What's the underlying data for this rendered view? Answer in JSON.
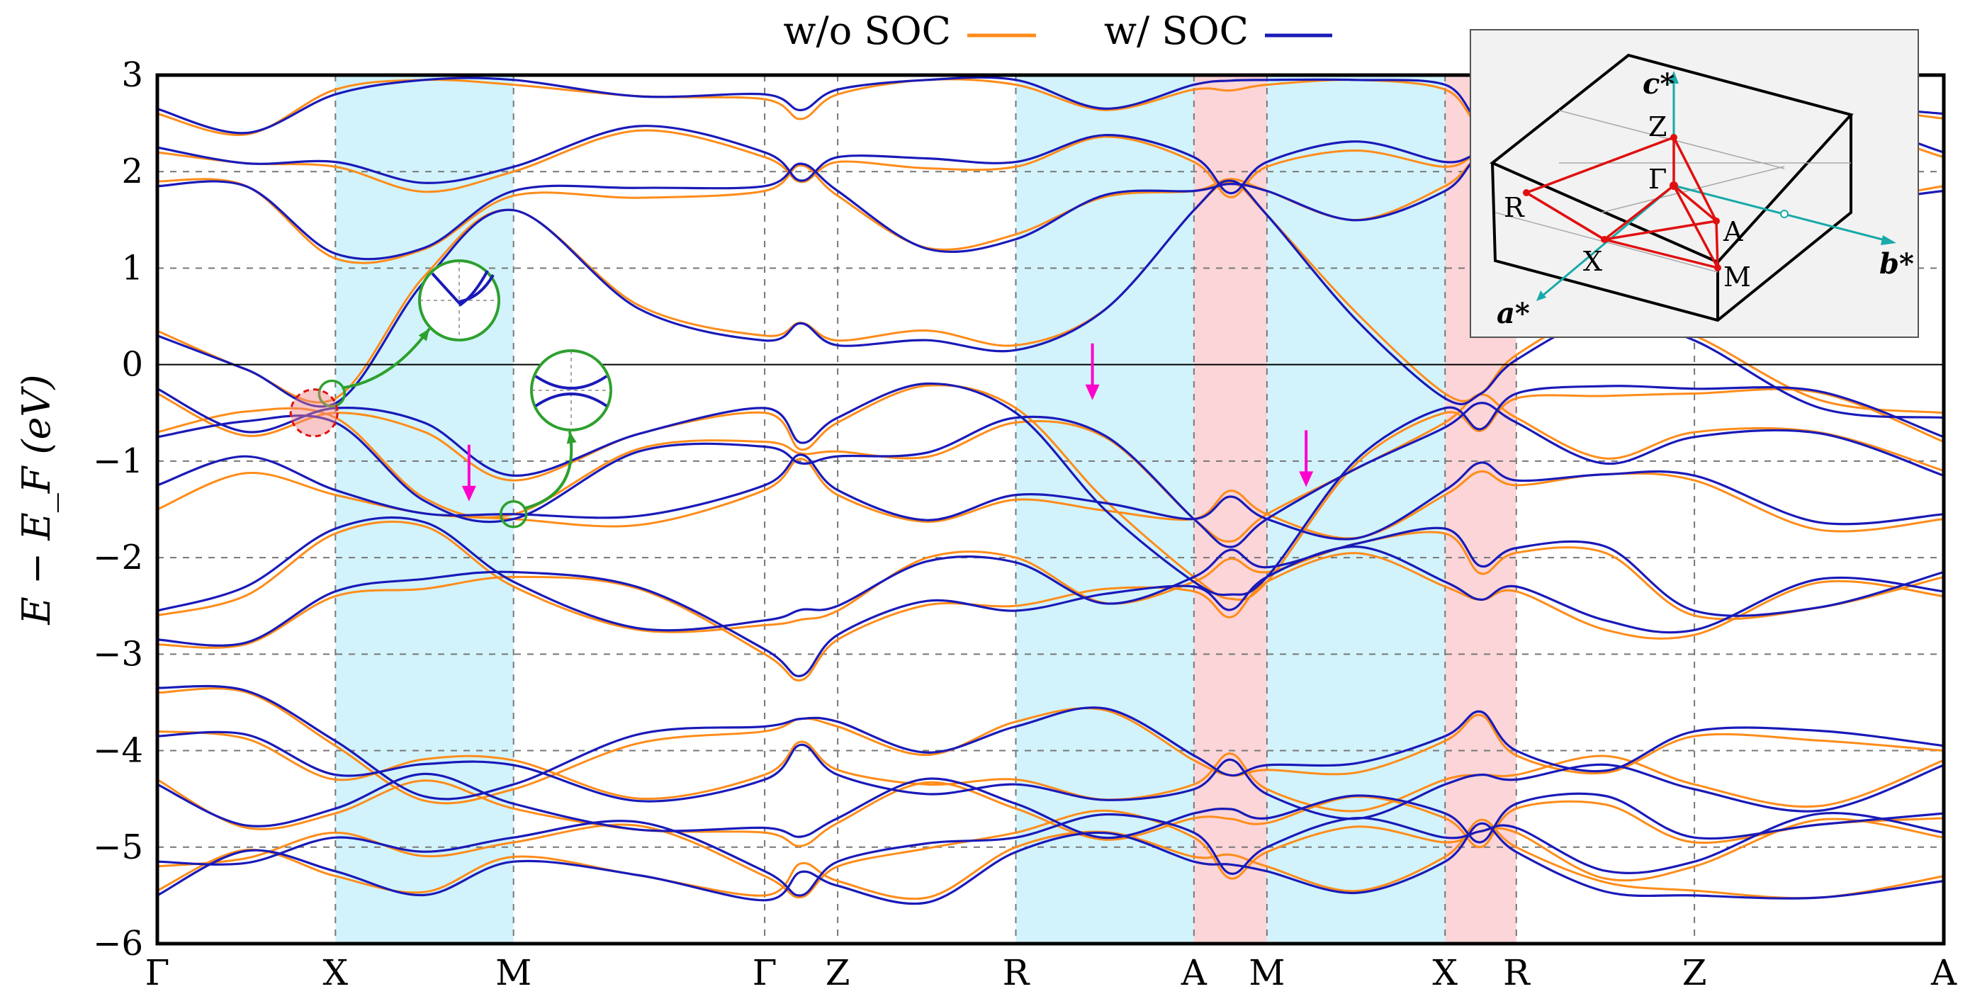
{
  "chart_data": {
    "type": "line",
    "title": "",
    "ylabel": "E − E_F (eV)",
    "xlabel": "",
    "ylim": [
      -6,
      3
    ],
    "yticks": [
      3,
      2,
      1,
      0,
      -1,
      -2,
      -3,
      -4,
      -5,
      -6
    ],
    "ytick_labels": [
      "3",
      "2",
      "1",
      "0",
      "−1",
      "−2",
      "−3",
      "−4",
      "−5",
      "−6"
    ],
    "k_path": [
      "Γ",
      "X",
      "M",
      "Γ",
      "Z",
      "R",
      "A",
      "M",
      "X",
      "R",
      "Z",
      "A"
    ],
    "k_positions": [
      0,
      1,
      2,
      3.41,
      3.82,
      4.82,
      5.82,
      6.23,
      7.23,
      7.63,
      8.63,
      10.03
    ],
    "highlight_regions": [
      {
        "from": 1,
        "to": 2,
        "color": "#d2f3fb"
      },
      {
        "from": 4.82,
        "to": 5.82,
        "color": "#d2f3fb"
      },
      {
        "from": 5.82,
        "to": 6.23,
        "color": "#fbd5d8"
      },
      {
        "from": 6.23,
        "to": 7.23,
        "color": "#d2f3fb"
      },
      {
        "from": 7.23,
        "to": 7.63,
        "color": "#fbd5d8"
      }
    ],
    "legend": [
      {
        "label": "w/o SOC",
        "color": "#ff8c1a"
      },
      {
        "label": "w/ SOC",
        "color": "#1a1ab8"
      }
    ],
    "fermi_level": 0,
    "series": [
      {
        "name": "w/o SOC",
        "color": "#ff8c1a",
        "bands": [
          [
            -5.45,
            -5.3,
            -5.1,
            -5.5,
            -5.35,
            -5.0,
            -5.1,
            -5.2,
            -5.1,
            -5.0,
            -5.45,
            -5.3
          ],
          [
            -5.2,
            -4.85,
            -4.95,
            -5.3,
            -5.2,
            -4.85,
            -4.9,
            -5.05,
            -4.95,
            -4.85,
            -5.2,
            -4.9
          ],
          [
            -4.3,
            -4.65,
            -4.6,
            -4.85,
            -4.75,
            -4.6,
            -4.7,
            -4.75,
            -4.7,
            -4.6,
            -4.95,
            -4.7
          ],
          [
            -3.8,
            -4.3,
            -4.1,
            -4.25,
            -4.2,
            -4.3,
            -4.35,
            -4.4,
            -4.3,
            -4.25,
            -4.35,
            -4.1
          ],
          [
            -3.4,
            -3.95,
            -4.4,
            -3.8,
            -3.75,
            -3.7,
            -4.1,
            -4.2,
            -3.9,
            -4.05,
            -3.85,
            -4.0
          ],
          [
            -2.9,
            -2.4,
            -2.2,
            -3.0,
            -2.85,
            -2.5,
            -2.35,
            -2.25,
            -2.3,
            -2.35,
            -2.8,
            -2.4
          ],
          [
            -2.6,
            -1.75,
            -2.3,
            -2.7,
            -2.55,
            -2.0,
            -2.25,
            -2.15,
            -1.75,
            -1.95,
            -2.6,
            -2.2
          ],
          [
            -1.5,
            -1.35,
            -1.6,
            -1.3,
            -1.35,
            -1.4,
            -1.6,
            -1.55,
            -1.35,
            -1.25,
            -1.2,
            -1.6
          ],
          [
            -0.7,
            -0.55,
            -1.55,
            -0.8,
            -0.9,
            -0.6,
            -1.6,
            -1.55,
            -0.6,
            -0.55,
            -0.7,
            -1.1
          ],
          [
            -0.3,
            -0.5,
            -1.2,
            -0.5,
            -0.6,
            -0.45,
            -2.2,
            -2.25,
            -0.5,
            -0.35,
            -0.3,
            -0.8
          ],
          [
            0.35,
            -0.35,
            1.6,
            0.3,
            0.25,
            0.2,
            1.6,
            1.55,
            -0.3,
            0.1,
            0.3,
            -0.5
          ],
          [
            1.9,
            1.1,
            1.75,
            1.8,
            1.75,
            1.35,
            1.8,
            1.8,
            1.85,
            1.8,
            1.9,
            1.85
          ],
          [
            2.2,
            2.05,
            2.0,
            2.15,
            2.1,
            2.05,
            2.1,
            2.05,
            2.05,
            2.1,
            2.2,
            2.15
          ],
          [
            2.6,
            2.85,
            2.9,
            2.75,
            2.8,
            2.9,
            2.85,
            2.9,
            2.85,
            2.8,
            2.6,
            2.55
          ]
        ]
      },
      {
        "name": "w/ SOC",
        "color": "#1a1ab8",
        "bands": [
          [
            -5.5,
            -5.25,
            -5.15,
            -5.55,
            -5.4,
            -5.05,
            -5.15,
            -5.25,
            -5.15,
            -5.05,
            -5.5,
            -5.35
          ],
          [
            -5.15,
            -4.9,
            -4.9,
            -5.25,
            -5.15,
            -4.9,
            -4.85,
            -5.0,
            -4.9,
            -4.8,
            -5.15,
            -4.85
          ],
          [
            -4.35,
            -4.6,
            -4.55,
            -4.8,
            -4.7,
            -4.55,
            -4.65,
            -4.7,
            -4.65,
            -4.55,
            -4.9,
            -4.65
          ],
          [
            -3.85,
            -4.25,
            -4.15,
            -4.3,
            -4.25,
            -4.35,
            -4.4,
            -4.45,
            -4.35,
            -4.3,
            -4.4,
            -4.15
          ],
          [
            -3.35,
            -3.9,
            -4.35,
            -3.75,
            -3.7,
            -3.75,
            -4.05,
            -4.15,
            -3.85,
            -4.0,
            -3.8,
            -3.95
          ],
          [
            -2.85,
            -2.35,
            -2.15,
            -2.95,
            -2.8,
            -2.55,
            -2.3,
            -2.2,
            -2.25,
            -2.3,
            -2.75,
            -2.35
          ],
          [
            -2.55,
            -1.7,
            -2.25,
            -2.65,
            -2.5,
            -2.05,
            -2.2,
            -2.1,
            -1.7,
            -1.9,
            -2.55,
            -2.15
          ],
          [
            -1.25,
            -1.3,
            -1.55,
            -1.25,
            -1.3,
            -1.35,
            -1.6,
            -1.6,
            -1.3,
            -1.2,
            -1.15,
            -1.55
          ],
          [
            -0.75,
            -0.6,
            -1.6,
            -0.85,
            -0.95,
            -0.55,
            -1.6,
            -1.6,
            -0.65,
            -0.6,
            -0.75,
            -1.15
          ],
          [
            -0.25,
            -0.45,
            -1.15,
            -0.45,
            -0.55,
            -0.5,
            -2.25,
            -2.2,
            -0.45,
            -0.3,
            -0.25,
            -0.75
          ],
          [
            0.3,
            -0.4,
            1.6,
            0.25,
            0.2,
            0.15,
            1.6,
            1.55,
            -0.35,
            0.05,
            0.25,
            -0.55
          ],
          [
            1.85,
            1.15,
            1.8,
            1.85,
            1.8,
            1.3,
            1.8,
            1.8,
            1.8,
            1.85,
            1.85,
            1.8
          ],
          [
            2.25,
            2.1,
            2.05,
            2.2,
            2.15,
            2.1,
            2.15,
            2.1,
            2.1,
            2.15,
            2.25,
            2.2
          ],
          [
            2.65,
            2.8,
            2.95,
            2.8,
            2.85,
            2.95,
            2.9,
            2.95,
            2.9,
            2.85,
            2.65,
            2.6
          ]
        ]
      }
    ],
    "annotations": {
      "arrows_at_k": [
        1.75,
        5.25,
        6.45
      ],
      "crossing_marks": [
        {
          "k": 0.98,
          "E": -0.3,
          "kind": "green-circle"
        },
        {
          "k": 0.88,
          "E": -0.5,
          "kind": "red-dashed-circle"
        },
        {
          "k": 2.0,
          "E": -1.55,
          "kind": "green-circle"
        }
      ],
      "zoom_insets": 2
    },
    "inset_bz": {
      "labels": [
        "c*",
        "Z",
        "Γ",
        "R",
        "A",
        "X",
        "M",
        "b*",
        "a*"
      ]
    }
  }
}
